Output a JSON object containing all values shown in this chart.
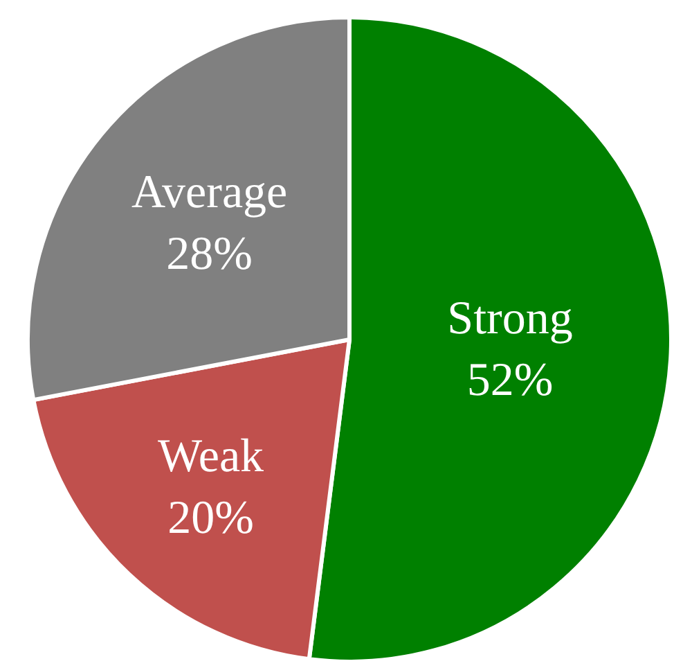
{
  "chart_data": {
    "type": "pie",
    "categories": [
      "Strong",
      "Weak",
      "Average"
    ],
    "values": [
      52,
      20,
      28
    ],
    "value_labels": [
      "52%",
      "20%",
      "28%"
    ],
    "colors": [
      "#008000",
      "#c0504d",
      "#808080"
    ],
    "legend": false
  }
}
